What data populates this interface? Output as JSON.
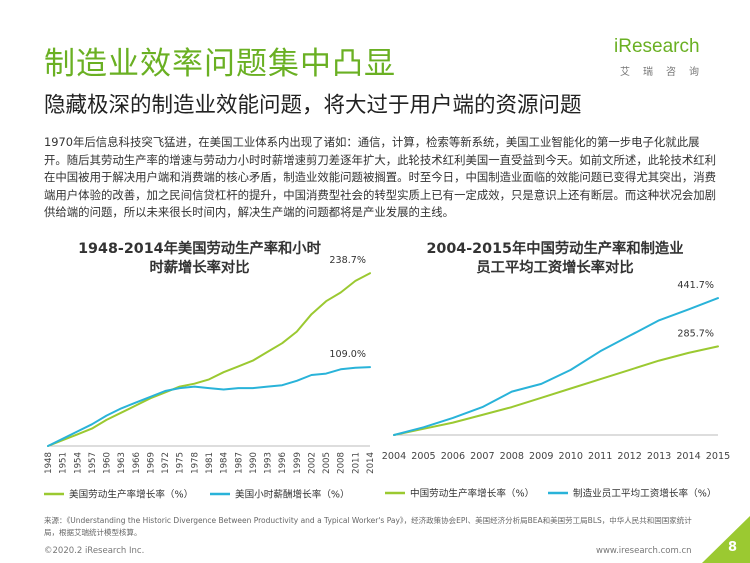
{
  "header": {
    "title": "制造业效率问题集中凸显",
    "subtitle": "隐藏极深的制造业效能问题，将大过于用户端的资源问题",
    "logo_text": "iResearch",
    "logo_sub": "艾瑞咨询"
  },
  "body_text": "1970年后信息科技突飞猛进，在美国工业体系内出现了诸如：通信，计算，检索等新系统，美国工业智能化的第一步电子化就此展开。随后其劳动生产率的增速与劳动力小时时薪增速剪刀差逐年扩大，此轮技术红利美国一直受益到今天。如前文所述，此轮技术红利在中国被用于解决用户端和消费端的核心矛盾，制造业效能问题被搁置。时至今日，中国制造业面临的效能问题已变得尤其突出，消费端用户体验的改善，加之民间信贷杠杆的提升，中国消费型社会的转型实质上已有一定成效，只是意识上还有断层。而这种状况会加剧供给端的问题，所以未来很长时间内，解决生产端的问题都将是产业发展的主线。",
  "colors": {
    "green": "#9bc931",
    "blue": "#29b3d9",
    "brand": "#6ab023"
  },
  "chart_data": [
    {
      "type": "line",
      "title": "1948-2014年美国劳动生产率和小时时薪增长率对比",
      "x_ticks": [
        "1948",
        "1951",
        "1954",
        "1957",
        "1960",
        "1963",
        "1966",
        "1969",
        "1972",
        "1975",
        "1978",
        "1981",
        "1984",
        "1987",
        "1990",
        "1993",
        "1996",
        "1999",
        "2002",
        "2005",
        "2008",
        "2011",
        "2014"
      ],
      "x": [
        1948,
        1951,
        1954,
        1957,
        1960,
        1963,
        1966,
        1969,
        1972,
        1975,
        1978,
        1981,
        1984,
        1987,
        1990,
        1993,
        1996,
        1999,
        2002,
        2005,
        2008,
        2011,
        2014
      ],
      "ylim": [
        0,
        250
      ],
      "series": [
        {
          "name": "美国劳动生产率增长率（%）",
          "color": "green",
          "values": [
            0,
            8,
            16,
            24,
            36,
            46,
            56,
            66,
            74,
            82,
            86,
            92,
            102,
            110,
            118,
            130,
            142,
            158,
            182,
            200,
            212,
            228,
            238.7
          ],
          "end_label": "238.7%"
        },
        {
          "name": "美国小时薪酬增长率（%）",
          "color": "blue",
          "values": [
            0,
            10,
            20,
            30,
            42,
            52,
            60,
            68,
            76,
            80,
            82,
            80,
            78,
            80,
            80,
            82,
            84,
            90,
            98,
            100,
            106,
            108,
            109.0
          ],
          "end_label": "109.0%"
        }
      ]
    },
    {
      "type": "line",
      "title": "2004-2015年中国劳动生产率和制造业员工平均工资增长率对比",
      "x_ticks": [
        "2004",
        "2005",
        "2006",
        "2007",
        "2008",
        "2009",
        "2010",
        "2011",
        "2012",
        "2013",
        "2014",
        "2015"
      ],
      "x": [
        2004,
        2005,
        2006,
        2007,
        2008,
        2009,
        2010,
        2011,
        2012,
        2013,
        2014,
        2015
      ],
      "ylim": [
        0,
        500
      ],
      "series": [
        {
          "name": "中国劳动生产率增长率（%）",
          "color": "green",
          "values": [
            0,
            20,
            40,
            65,
            90,
            120,
            150,
            180,
            210,
            240,
            265,
            285.7
          ],
          "end_label": "285.7%"
        },
        {
          "name": "制造业员工平均工资增长率（%）",
          "color": "blue",
          "values": [
            0,
            25,
            55,
            90,
            140,
            165,
            210,
            270,
            320,
            370,
            405,
            441.7
          ],
          "end_label": "441.7%"
        }
      ]
    }
  ],
  "footer": {
    "source": "来源：《Understanding the Historic Divergence Between Productivity and a Typical Worker's Pay》，经济政策协会EPI、美国经济分析局BEA和美国劳工局BLS，中华人民共和国国家统计局，根据艾瑞统计模型核算。",
    "copyright": "©2020.2 iResearch Inc.",
    "website": "www.iresearch.com.cn",
    "page": "8"
  }
}
